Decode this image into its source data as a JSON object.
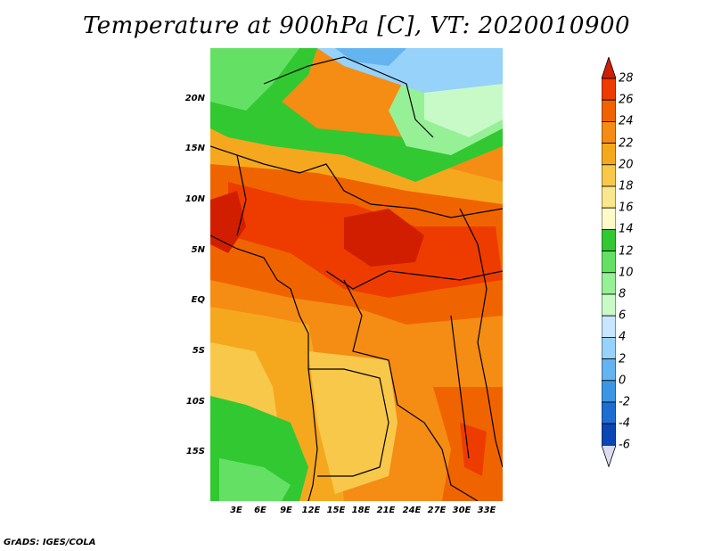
{
  "title": "Temperature at 900hPa [C], VT: 2020010900",
  "footer": "GrADS: IGES/COLA",
  "map": {
    "lat_labels": [
      "20N",
      "15N",
      "10N",
      "5N",
      "EQ",
      "5S",
      "10S",
      "15S"
    ],
    "lon_labels": [
      "3E",
      "6E",
      "9E",
      "12E",
      "15E",
      "18E",
      "21E",
      "24E",
      "27E",
      "30E",
      "33E"
    ]
  },
  "colorbar": {
    "labels": [
      "28",
      "26",
      "24",
      "22",
      "20",
      "18",
      "16",
      "14",
      "12",
      "10",
      "8",
      "6",
      "4",
      "2",
      "0",
      "-2",
      "-4",
      "-6"
    ],
    "colors": [
      "#d21e00",
      "#ee3c00",
      "#f06400",
      "#f58c14",
      "#f5a81e",
      "#f8c84b",
      "#fae68c",
      "#fffac8",
      "#32c832",
      "#64e164",
      "#96f096",
      "#c8fac8",
      "#c8e6ff",
      "#96d2fa",
      "#64b4f0",
      "#3c96e6",
      "#1e6ed2",
      "#0a46b4",
      "#000a64"
    ],
    "over_color": "#d21e00",
    "under_color": "#dcdcf0"
  }
}
